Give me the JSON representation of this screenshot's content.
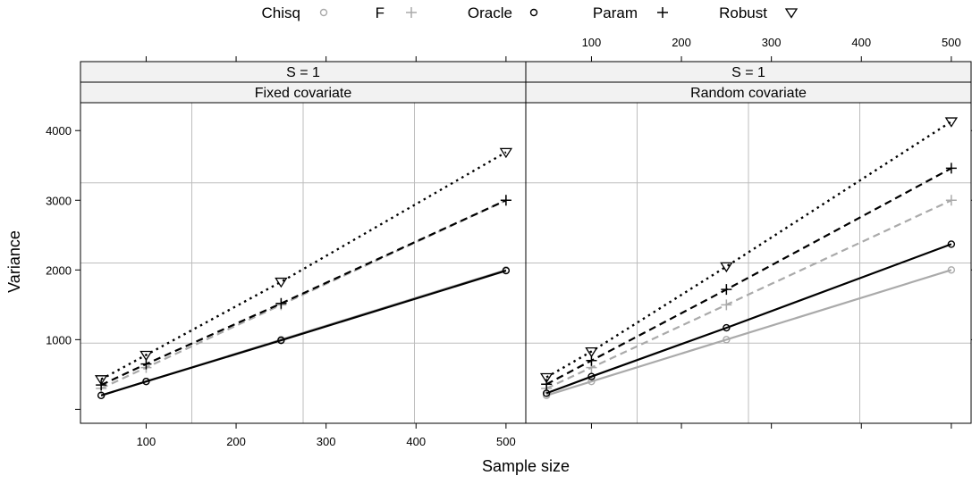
{
  "chart_data": {
    "type": "line",
    "xlabel": "Sample size",
    "ylabel": "Variance",
    "x_ticks": [
      100,
      200,
      300,
      400,
      500
    ],
    "y_ticks": [
      1000,
      2000,
      3000,
      4000
    ],
    "xlim": [
      27,
      522
    ],
    "ylim": [
      -200,
      4400
    ],
    "grid": true,
    "legend_position": "top",
    "legend": [
      {
        "name": "Chisq",
        "marker": "open-circle",
        "color": "#aaaaaa"
      },
      {
        "name": "F",
        "marker": "plus",
        "color": "#aaaaaa"
      },
      {
        "name": "Oracle",
        "marker": "open-circle",
        "color": "#000000"
      },
      {
        "name": "Param",
        "marker": "plus",
        "color": "#000000"
      },
      {
        "name": "Robust",
        "marker": "open-triangle-down",
        "color": "#000000"
      }
    ],
    "panels": [
      {
        "strip_top": "S = 1",
        "strip_bottom": "Fixed covariate",
        "x": [
          50,
          100,
          250,
          500
        ],
        "series": [
          {
            "name": "Chisq",
            "values": [
              200,
              400,
              1000,
              2000
            ]
          },
          {
            "name": "F",
            "values": [
              300,
              600,
              1500,
              3000
            ]
          },
          {
            "name": "Oracle",
            "values": [
              200,
              400,
              990,
              1990
            ]
          },
          {
            "name": "Param",
            "values": [
              350,
              650,
              1520,
              3000
            ]
          },
          {
            "name": "Robust",
            "values": [
              430,
              780,
              1830,
              3690
            ]
          }
        ]
      },
      {
        "strip_top": "S = 1",
        "strip_bottom": "Random covariate",
        "x": [
          50,
          100,
          250,
          500
        ],
        "series": [
          {
            "name": "Chisq",
            "values": [
              200,
              400,
              1000,
              2000
            ]
          },
          {
            "name": "F",
            "values": [
              300,
              600,
              1500,
              3000
            ]
          },
          {
            "name": "Oracle",
            "values": [
              230,
              470,
              1170,
              2370
            ]
          },
          {
            "name": "Param",
            "values": [
              360,
              700,
              1720,
              3460
            ]
          },
          {
            "name": "Robust",
            "values": [
              460,
              830,
              2050,
              4130
            ]
          }
        ]
      }
    ]
  }
}
